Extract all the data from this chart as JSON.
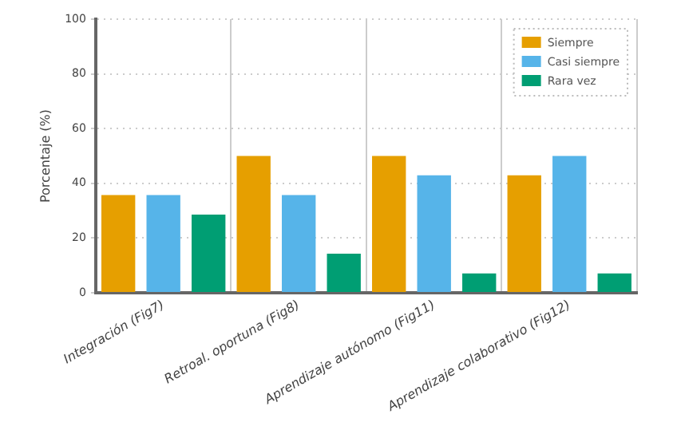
{
  "chart_data": {
    "type": "bar",
    "ylabel": "Porcentaje (%)",
    "categories": [
      "Integración (Fig7)",
      "Retroal. oportuna (Fig8)",
      "Aprendizaje autónomo (Fig11)",
      "Aprendizaje colaborativo (Fig12)"
    ],
    "series": [
      {
        "name": "Siempre",
        "color": "#e69f00",
        "values": [
          35.7,
          50,
          50,
          42.9
        ]
      },
      {
        "name": "Casi siempre",
        "color": "#56b4e9",
        "values": [
          35.7,
          35.7,
          42.9,
          50
        ]
      },
      {
        "name": "Rara vez",
        "color": "#009e73",
        "values": [
          28.6,
          14.3,
          7.1,
          7.1
        ]
      }
    ],
    "ylim": [
      0,
      100
    ],
    "yticks": [
      0,
      20,
      40,
      60,
      80,
      100
    ],
    "grid": true,
    "legend": "top right"
  }
}
